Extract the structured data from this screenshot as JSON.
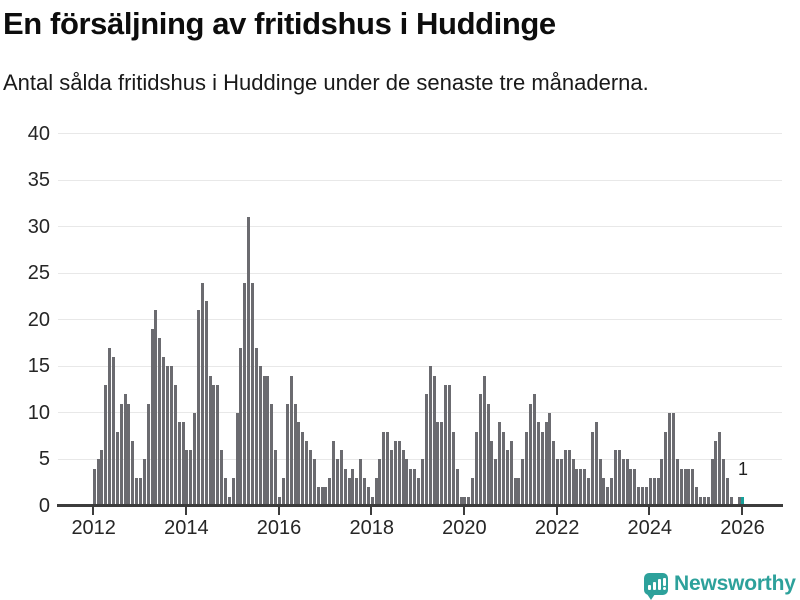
{
  "header": {
    "title": "En försäljning av fritidshus i Huddinge",
    "subtitle": "Antal sålda fritidshus i Huddinge under de senaste tre månaderna."
  },
  "chart_data": {
    "type": "bar",
    "title": "En försäljning av fritidshus i Huddinge",
    "subtitle": "Antal sålda fritidshus i Huddinge under de senaste tre månaderna.",
    "x_start_month": "2012-01",
    "x_end_month": "2026-01",
    "x_tick_labels": [
      "2012",
      "2014",
      "2016",
      "2018",
      "2020",
      "2022",
      "2024",
      "2026"
    ],
    "y_ticks": [
      0,
      5,
      10,
      15,
      20,
      25,
      30,
      35,
      40
    ],
    "ylim": [
      0,
      40
    ],
    "grid": "horizontal",
    "legend_position": "none",
    "bar_color": "#6b6b70",
    "values": [
      4,
      5,
      6,
      13,
      17,
      16,
      8,
      11,
      12,
      11,
      7,
      3,
      3,
      5,
      11,
      19,
      21,
      18,
      16,
      15,
      15,
      13,
      9,
      9,
      6,
      6,
      10,
      21,
      24,
      22,
      14,
      13,
      13,
      6,
      3,
      1,
      3,
      10,
      17,
      24,
      31,
      24,
      17,
      15,
      14,
      14,
      11,
      6,
      1,
      3,
      11,
      14,
      11,
      9,
      8,
      7,
      6,
      5,
      2,
      2,
      2,
      3,
      7,
      5,
      6,
      4,
      3,
      4,
      3,
      5,
      3,
      2,
      1,
      3,
      5,
      8,
      8,
      6,
      7,
      7,
      6,
      5,
      4,
      4,
      3,
      5,
      12,
      15,
      14,
      9,
      9,
      13,
      13,
      8,
      4,
      1,
      1,
      1,
      3,
      8,
      12,
      14,
      11,
      7,
      5,
      9,
      8,
      6,
      7,
      3,
      3,
      5,
      8,
      11,
      12,
      9,
      8,
      9,
      10,
      7,
      5,
      5,
      6,
      6,
      5,
      4,
      4,
      4,
      3,
      8,
      9,
      5,
      3,
      2,
      3,
      6,
      6,
      5,
      5,
      4,
      4,
      2,
      2,
      2,
      3,
      3,
      3,
      5,
      8,
      10,
      10,
      5,
      4,
      4,
      4,
      4,
      2,
      1,
      1,
      1,
      5,
      7,
      8,
      5,
      3,
      1,
      0,
      1,
      1
    ],
    "highlight": {
      "index": 168,
      "value_label": "1",
      "color": "#16a09a"
    }
  },
  "branding": {
    "logo_text": "Newsworthy",
    "logo_color": "#2da19b"
  }
}
